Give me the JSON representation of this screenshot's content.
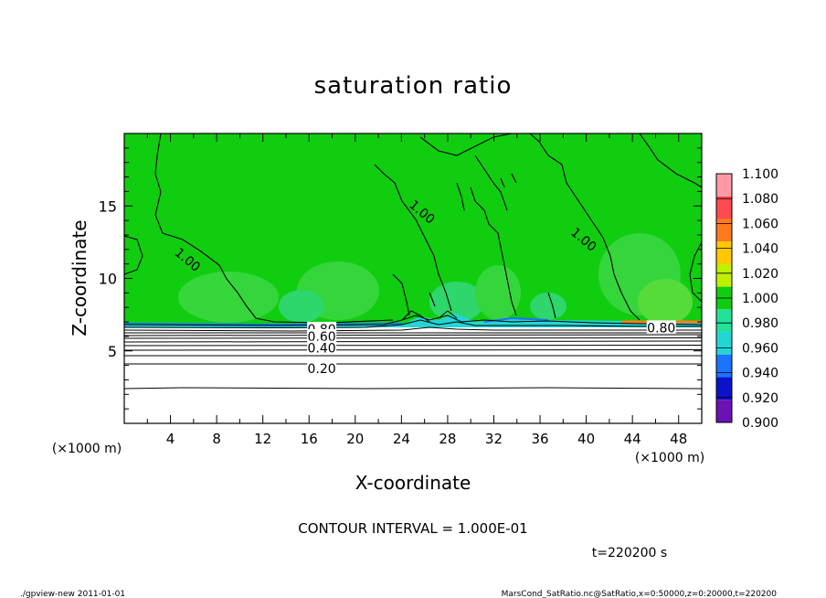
{
  "chart_data": {
    "type": "heatmap",
    "title": "saturation ratio",
    "xlabel": "X-coordinate",
    "ylabel": "Z-coordinate",
    "x_unit_left": "(×1000 m)",
    "x_unit_right": "(×1000 m)",
    "xlim": [
      0,
      50
    ],
    "ylim": [
      0,
      20
    ],
    "xticks": [
      4,
      8,
      12,
      16,
      20,
      24,
      28,
      32,
      36,
      40,
      44,
      48
    ],
    "yticks": [
      5,
      10,
      15
    ],
    "colorbar": {
      "levels": [
        "1.100",
        "1.080",
        "1.060",
        "1.040",
        "1.020",
        "1.000",
        "0.980",
        "0.960",
        "0.940",
        "0.920",
        "0.900"
      ],
      "colors": [
        "#ff9aa5",
        "#ff4b50",
        "#ff7a1e",
        "#ffc800",
        "#bff000",
        "#10cd10",
        "#22e29a",
        "#22d6d6",
        "#1c73ff",
        "#0a12cc",
        "#6a12b4"
      ]
    },
    "contour_labels": [
      {
        "text": "1.00",
        "x": 5.5,
        "z": 11.3
      },
      {
        "text": "1.00",
        "x": 25.8,
        "z": 14.6
      },
      {
        "text": "1.00",
        "x": 39.8,
        "z": 12.7
      },
      {
        "text": "0.80",
        "x": 46.5,
        "z": 6.6
      },
      {
        "text": "0.80",
        "x": 17.1,
        "z": 6.5
      },
      {
        "text": "0.60",
        "x": 17.1,
        "z": 6.0
      },
      {
        "text": "0.40",
        "x": 17.1,
        "z": 5.2
      },
      {
        "text": "0.20",
        "x": 17.1,
        "z": 3.8
      }
    ],
    "contour_interval": "CONTOUR INTERVAL = 1.000E-01",
    "time_label": "t=220200 s"
  },
  "footer": {
    "left": "./gpview-new   2011-01-01",
    "right": "MarsCond_SatRatio.nc@SatRatio,x=0:50000,z=0:20000,t=220200"
  },
  "colors": {
    "field_main": "#10cd10",
    "field_light": "#42da4a",
    "field_cyan": "#22e29a",
    "lower_region": "#ffffff"
  }
}
